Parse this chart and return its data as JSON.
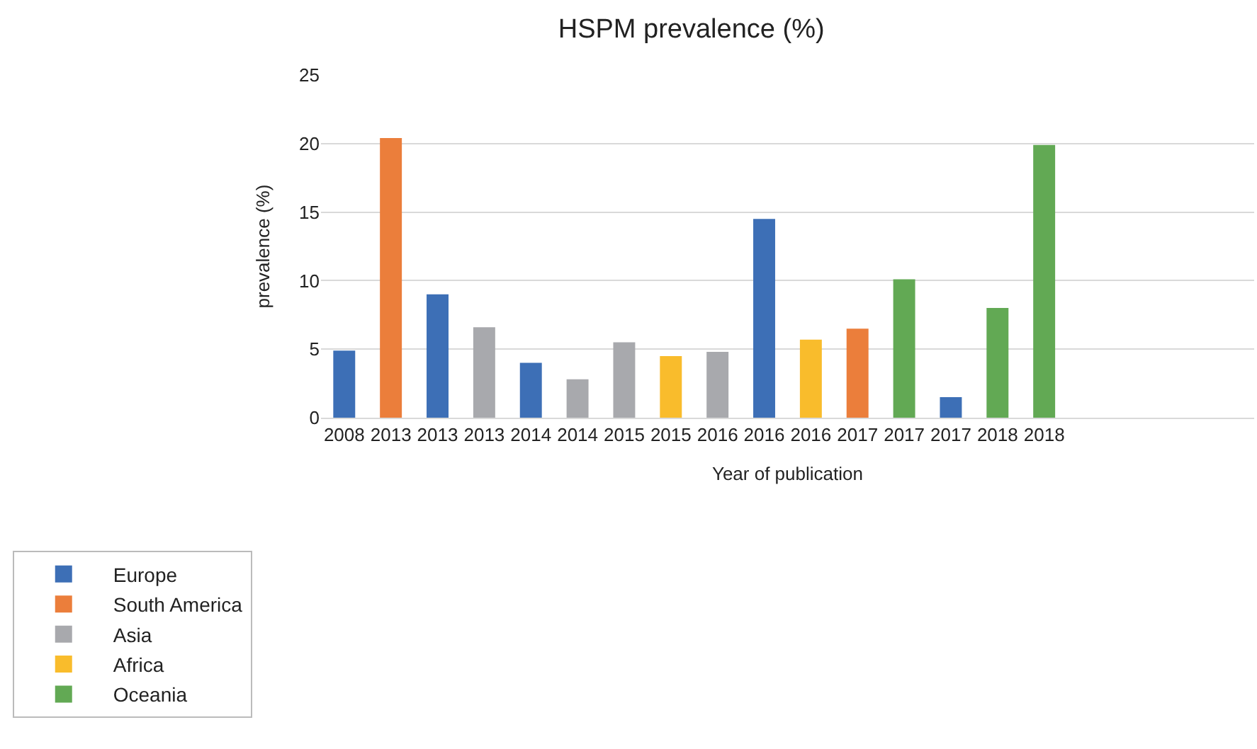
{
  "chart_data": {
    "type": "bar",
    "title": "HSPM prevalence (%)",
    "xlabel": "Year of publication",
    "ylabel": "prevalence (%)",
    "categories": [
      "2008",
      "2013",
      "2013",
      "2013",
      "2014",
      "2014",
      "2015",
      "2015",
      "2016",
      "2016",
      "2016",
      "2017",
      "2017",
      "2017",
      "2018",
      "2018",
      null,
      null,
      null,
      null
    ],
    "series": [
      {
        "name": "Europe",
        "color": "#3d6fb6",
        "values": [
          4.9,
          null,
          9.0,
          null,
          4.0,
          null,
          null,
          null,
          null,
          14.5,
          null,
          null,
          null,
          1.5,
          null,
          null,
          null,
          null,
          null,
          null
        ]
      },
      {
        "name": "South America",
        "color": "#eb7e3b",
        "values": [
          null,
          20.4,
          null,
          null,
          null,
          null,
          null,
          null,
          null,
          null,
          null,
          6.5,
          null,
          null,
          null,
          null,
          null,
          null,
          null,
          null
        ]
      },
      {
        "name": "Asia",
        "color": "#a8a9ad",
        "values": [
          null,
          null,
          null,
          6.6,
          null,
          2.8,
          5.5,
          null,
          4.8,
          null,
          null,
          null,
          null,
          null,
          null,
          null,
          null,
          null,
          null,
          null
        ]
      },
      {
        "name": "Africa",
        "color": "#f9bc2c",
        "values": [
          null,
          null,
          null,
          null,
          null,
          null,
          null,
          4.5,
          null,
          null,
          5.7,
          null,
          null,
          null,
          null,
          null,
          null,
          null,
          null,
          null
        ]
      },
      {
        "name": "Oceania",
        "color": "#62a954",
        "values": [
          null,
          null,
          null,
          null,
          null,
          null,
          null,
          null,
          null,
          null,
          null,
          null,
          10.1,
          null,
          8.0,
          19.9,
          null,
          null,
          null,
          null
        ]
      }
    ],
    "ylim": [
      0,
      25
    ],
    "yticks": [
      0,
      5,
      10,
      15,
      20,
      25
    ],
    "grid": "y",
    "legend": "bottom left"
  }
}
